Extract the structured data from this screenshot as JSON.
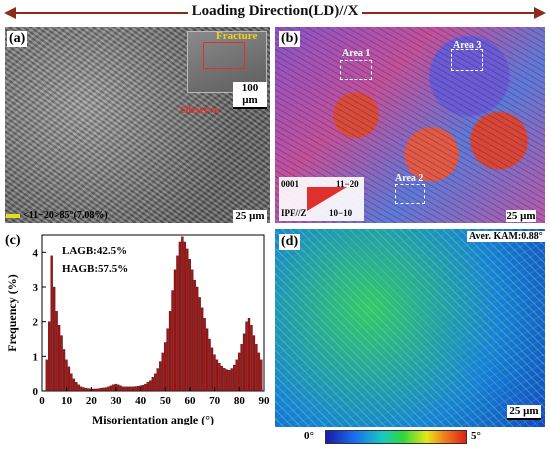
{
  "header": {
    "title": "Loading Direction(LD)//X"
  },
  "panel_a": {
    "label": "(a)",
    "fracture_label": "Fracture",
    "observe_label": "Observe",
    "inset_scale": "100 μm",
    "scale": "25 μm",
    "legend": "<11−20>85°(7.08%)"
  },
  "panel_b": {
    "label": "(b)",
    "area1": "Area 1",
    "area2": "Area 2",
    "area3": "Area 3",
    "ipf_0001": "0001",
    "ipf_1120": "11−20",
    "ipf_1010": "10−10",
    "ipf_title": "IPF//Z",
    "scale": "25 μm"
  },
  "panel_d": {
    "label": "(d)",
    "kam_label": "Aver. KAM:0.88°",
    "scale": "25 μm",
    "colorbar_min": "0°",
    "colorbar_max": "5°"
  },
  "chart_data": {
    "type": "bar",
    "label": "(c)",
    "annotations": [
      "LAGB:42.5%",
      "HAGB:57.5%"
    ],
    "xlabel": "Misorientation angle (°)",
    "ylabel": "Frequency (%)",
    "xlim": [
      0,
      90
    ],
    "ylim": [
      0,
      4.5
    ],
    "xticks": [
      0,
      10,
      20,
      30,
      40,
      50,
      60,
      70,
      80,
      90
    ],
    "yticks": [
      0,
      1,
      2,
      3,
      4
    ],
    "bin_width": 1,
    "bar_color": "#a01515",
    "x": [
      2,
      3,
      4,
      5,
      6,
      7,
      8,
      9,
      10,
      11,
      12,
      13,
      14,
      15,
      16,
      17,
      18,
      19,
      20,
      21,
      22,
      23,
      24,
      25,
      26,
      27,
      28,
      29,
      30,
      31,
      32,
      33,
      34,
      35,
      36,
      37,
      38,
      39,
      40,
      41,
      42,
      43,
      44,
      45,
      46,
      47,
      48,
      49,
      50,
      51,
      52,
      53,
      54,
      55,
      56,
      57,
      58,
      59,
      60,
      61,
      62,
      63,
      64,
      65,
      66,
      67,
      68,
      69,
      70,
      71,
      72,
      73,
      74,
      75,
      76,
      77,
      78,
      79,
      80,
      81,
      82,
      83,
      84,
      85,
      86,
      87,
      88,
      89
    ],
    "values": [
      0.9,
      2.0,
      3.9,
      3.0,
      2.3,
      1.9,
      1.6,
      1.2,
      0.9,
      0.7,
      0.5,
      0.35,
      0.25,
      0.18,
      0.12,
      0.1,
      0.08,
      0.07,
      0.06,
      0.06,
      0.06,
      0.07,
      0.08,
      0.09,
      0.1,
      0.12,
      0.15,
      0.18,
      0.2,
      0.18,
      0.15,
      0.12,
      0.12,
      0.12,
      0.12,
      0.12,
      0.13,
      0.14,
      0.15,
      0.17,
      0.2,
      0.25,
      0.3,
      0.4,
      0.5,
      0.65,
      0.85,
      1.1,
      1.4,
      1.8,
      2.3,
      2.9,
      3.5,
      3.9,
      4.3,
      4.45,
      4.3,
      4.1,
      3.8,
      3.5,
      3.2,
      3.0,
      2.7,
      2.4,
      2.1,
      1.8,
      1.5,
      1.25,
      1.05,
      0.9,
      0.8,
      0.72,
      0.66,
      0.62,
      0.6,
      0.65,
      0.75,
      0.9,
      1.1,
      1.35,
      1.65,
      2.0,
      2.1,
      1.9,
      1.6,
      1.35,
      1.1,
      0.9
    ]
  }
}
